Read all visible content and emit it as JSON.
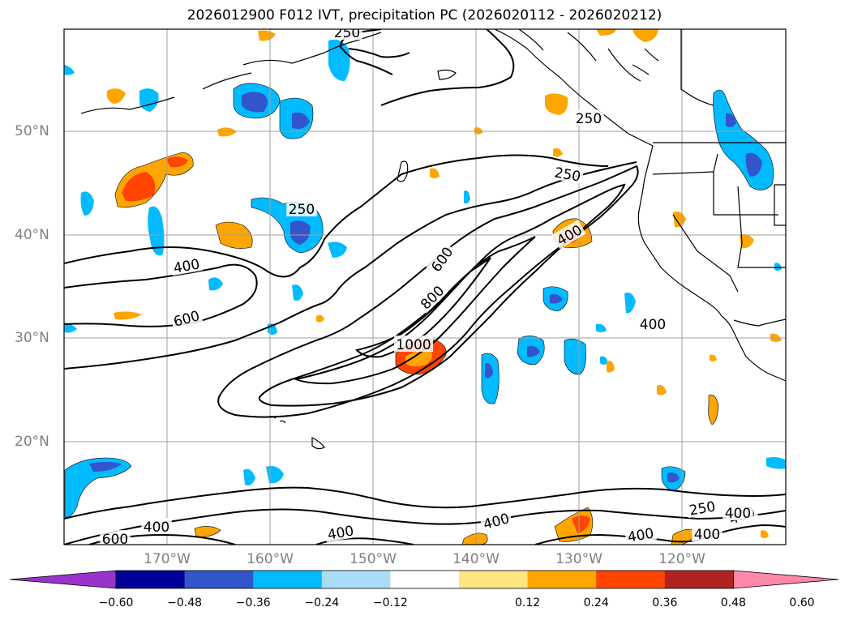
{
  "title": "2026012900 F012 IVT, precipitation PC (2026020112 - 2026020212)",
  "map": {
    "lat_labels": [
      "50°N",
      "40°N",
      "30°N",
      "20°N"
    ],
    "lon_labels": [
      "170°W",
      "160°W",
      "150°W",
      "140°W",
      "130°W",
      "120°W"
    ],
    "contour_levels": [
      250,
      400,
      600,
      800,
      1000
    ],
    "contour_labels": [
      "250",
      "250",
      "250",
      "250",
      "400",
      "400",
      "400",
      "400",
      "400",
      "400",
      "400",
      "600",
      "600",
      "600",
      "800",
      "1000",
      "250",
      "400",
      "400",
      "400"
    ],
    "contour_color": "#000000",
    "grid_color": "#a0a0a0"
  },
  "colorbar": {
    "tick_labels": [
      "−0.60",
      "−0.48",
      "−0.36",
      "−0.24",
      "−0.12",
      "0.12",
      "0.24",
      "0.36",
      "0.48",
      "0.60"
    ],
    "colors": [
      "#9933cc",
      "#000099",
      "#3355cc",
      "#00bbff",
      "#aaddf5",
      "#ffffff",
      "#ffe680",
      "#ffa500",
      "#ff4500",
      "#b22222",
      "#ff88aa"
    ]
  }
}
